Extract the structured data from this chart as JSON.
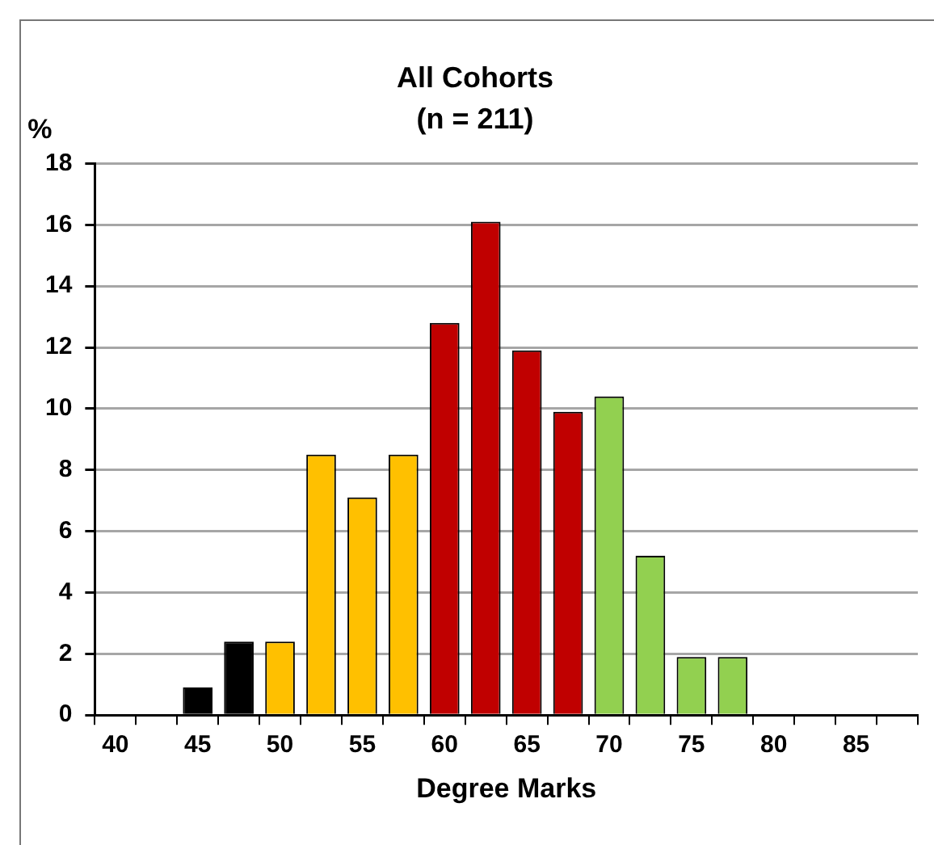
{
  "chart_data": {
    "type": "bar",
    "title": "All Cohorts",
    "subtitle": "(n = 211)",
    "xlabel": "Degree Marks",
    "ylabel": "%",
    "categories": [
      "40",
      null,
      "45",
      null,
      "50",
      null,
      "55",
      null,
      "60",
      null,
      "65",
      null,
      "70",
      null,
      "75",
      null,
      "80",
      null,
      "85",
      null
    ],
    "values": [
      null,
      null,
      0.9,
      2.4,
      2.4,
      8.5,
      7.1,
      8.5,
      12.8,
      16.1,
      11.9,
      9.9,
      10.4,
      5.2,
      1.9,
      1.9,
      null,
      null,
      null,
      null
    ],
    "colors": [
      "#000000",
      "#000000",
      "#000000",
      "#000000",
      "#ffc000",
      "#ffc000",
      "#ffc000",
      "#ffc000",
      "#c00000",
      "#c00000",
      "#c00000",
      "#c00000",
      "#92d050",
      "#92d050",
      "#92d050",
      "#92d050",
      "#92d050",
      "#92d050",
      "#92d050",
      "#92d050"
    ],
    "ylim": [
      0,
      18
    ],
    "yticks": [
      0,
      2,
      4,
      6,
      8,
      10,
      12,
      14,
      16,
      18
    ],
    "grid": "y",
    "legend": false
  }
}
